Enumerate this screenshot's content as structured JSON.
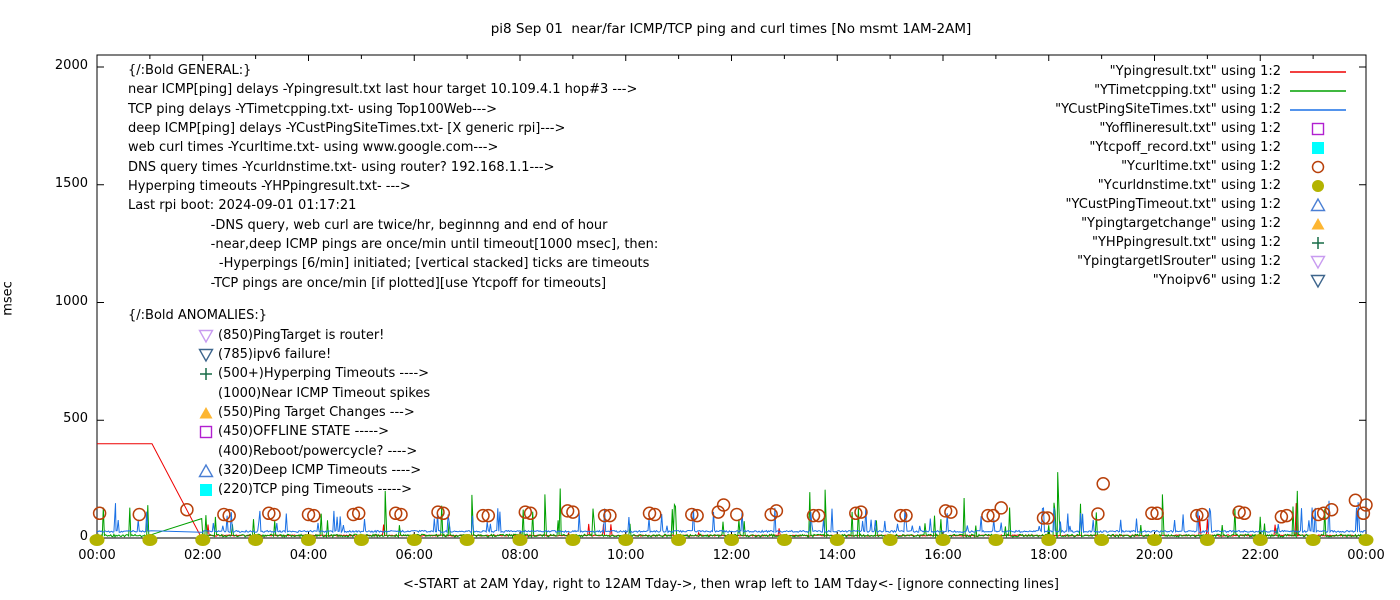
{
  "title": "pi8 Sep 01  near/far ICMP/TCP ping and curl times [No msmt 1AM-2AM]",
  "axes": {
    "ylabel": "msec",
    "y_ticks": [
      0,
      500,
      1000,
      1500,
      2000
    ],
    "x_ticks": [
      {
        "hour": 0,
        "label": "00:00"
      },
      {
        "hour": 2,
        "label": "02:00"
      },
      {
        "hour": 4,
        "label": "04:00"
      },
      {
        "hour": 6,
        "label": "06:00"
      },
      {
        "hour": 8,
        "label": "08:00"
      },
      {
        "hour": 10,
        "label": "10:00"
      },
      {
        "hour": 12,
        "label": "12:00"
      },
      {
        "hour": 14,
        "label": "14:00"
      },
      {
        "hour": 16,
        "label": "16:00"
      },
      {
        "hour": 18,
        "label": "18:00"
      },
      {
        "hour": 20,
        "label": "20:00"
      },
      {
        "hour": 22,
        "label": "22:00"
      },
      {
        "hour": 24,
        "label": "00:00"
      }
    ],
    "x_caption": "<-START at 2AM Yday, right to 12AM Tday->, then wrap left to 1AM Tday<- [ignore connecting lines]"
  },
  "legend": {
    "items": [
      {
        "label": "\"Ypingresult.txt\" using 1:2",
        "marker": "line",
        "color": "#ee0000"
      },
      {
        "label": "\"YTimetcpping.txt\" using 1:2",
        "marker": "line",
        "color": "#00a000"
      },
      {
        "label": "\"YCustPingSiteTimes.txt\" using 1:2",
        "marker": "line",
        "color": "#1b71e5"
      },
      {
        "label": "\"Yofflineresult.txt\" using 1:2",
        "marker": "square-open",
        "color": "#b120d0"
      },
      {
        "label": "\"Ytcpoff_record.txt\" using 1:2",
        "marker": "square-filled",
        "color": "#00ffff"
      },
      {
        "label": "\"Ycurltime.txt\" using 1:2",
        "marker": "circle-open",
        "color": "#b8400a"
      },
      {
        "label": "\"Ycurldnstime.txt\" using 1:2",
        "marker": "circle-filled",
        "color": "#b3b300"
      },
      {
        "label": "\"YCustPingTimeout.txt\" using 1:2",
        "marker": "triangle-up-open",
        "color": "#4a7fd4"
      },
      {
        "label": "\"Ypingtargetchange\" using 1:2",
        "marker": "triangle-up-filled",
        "color": "#fdb632"
      },
      {
        "label": "\"YHPpingresult.txt\" using 1:2",
        "marker": "plus",
        "color": "#176b47"
      },
      {
        "label": "\"YpingtargetISrouter\" using 1:2",
        "marker": "triangle-down-open",
        "color": "#c89bf0"
      },
      {
        "label": "\"Ynoipv6\" using 1:2",
        "marker": "triangle-down-open",
        "color": "#3d658c"
      }
    ]
  },
  "annotations": {
    "general": {
      "heading": "{/:Bold GENERAL:}",
      "lines": [
        "near ICMP[ping] delays -Ypingresult.txt last hour target 10.109.4.1 hop#3 --->",
        "TCP ping delays -YTimetcpping.txt- using Top100Web--->",
        "deep ICMP[ping] delays -YCustPingSiteTimes.txt- [X generic rpi]--->",
        "web curl times -Ycurltime.txt- using www.google.com--->",
        "DNS query times -Ycurldnstime.txt- using router? 192.168.1.1--->",
        "Hyperping timeouts -YHPpingresult.txt- --->",
        "Last rpi boot: 2024-09-01 01:17:21",
        "                    -DNS query, web curl are twice/hr, beginnng and end of hour",
        "                    -near,deep ICMP pings are once/min until timeout[1000 msec], then:",
        "                      -Hyperpings [6/min] initiated; [vertical stacked] ticks are timeouts",
        "                    -TCP pings are once/min [if plotted][use Ytcpoff for timeouts]"
      ]
    },
    "anomalies": {
      "heading": "{/:Bold ANOMALIES:}",
      "items": [
        {
          "marker": "triangle-down-open",
          "color": "#c89bf0",
          "text": "(850)PingTarget is router!"
        },
        {
          "marker": "triangle-down-open",
          "color": "#3d658c",
          "text": "(785)ipv6 failure!"
        },
        {
          "marker": "plus",
          "color": "#176b47",
          "text": "(500+)Hyperping Timeouts ---->"
        },
        {
          "marker": "none",
          "color": "",
          "text": "(1000)Near ICMP Timeout spikes"
        },
        {
          "marker": "triangle-up-filled",
          "color": "#fdb632",
          "text": "(550)Ping Target Changes --->"
        },
        {
          "marker": "square-open",
          "color": "#b120d0",
          "text": "(450)OFFLINE STATE ----->"
        },
        {
          "marker": "none",
          "color": "",
          "text": "(400)Reboot/powercycle? ---->"
        },
        {
          "marker": "triangle-up-open",
          "color": "#4a7fd4",
          "text": "(320)Deep ICMP Timeouts ---->"
        },
        {
          "marker": "square-filled",
          "color": "#00ffff",
          "text": "(220)TCP ping Timeouts ----->"
        }
      ]
    }
  },
  "chart_data": {
    "type": "line",
    "title": "pi8 Sep 01  near/far ICMP/TCP ping and curl times [No msmt 1AM-2AM]",
    "xlabel": "<-START at 2AM Yday, right to 12AM Tday->, then wrap left to 1AM Tday<- [ignore connecting lines]",
    "ylabel": "msec",
    "x_unit": "hours",
    "xlim": [
      0,
      24
    ],
    "ylim": [
      0,
      2050
    ],
    "grid": false,
    "legend_position": "top-right",
    "no_msmt_gap": [
      1.03,
      1.97
    ],
    "seed": 97,
    "series": [
      {
        "name": "Ypingresult.txt",
        "color": "#ee0000",
        "plateau": [
          [
            0,
            400
          ],
          [
            1.04,
            400
          ],
          [
            1.96,
            8
          ]
        ],
        "base": 8,
        "jitter": 5,
        "spike_rate": 0.008,
        "spike_range": [
          20,
          60
        ],
        "big_spikes": [
          [
            9.3,
            60
          ],
          [
            20.85,
            95
          ],
          [
            21.0,
            80
          ],
          [
            22.68,
            148
          ]
        ]
      },
      {
        "name": "YTimetcpping.txt",
        "color": "#00a000",
        "base": 5,
        "jitter": 11,
        "spike_rate": 0.05,
        "spike_range": [
          40,
          150
        ],
        "big_spikes": [
          [
            5.45,
            200
          ],
          [
            7.09,
            183
          ],
          [
            8.47,
            185
          ],
          [
            8.76,
            210
          ],
          [
            13.48,
            195
          ],
          [
            13.77,
            205
          ],
          [
            16.4,
            170
          ],
          [
            18.17,
            280
          ],
          [
            20.15,
            185
          ],
          [
            22.7,
            200
          ]
        ]
      },
      {
        "name": "YCustPingSiteTimes.txt",
        "color": "#1b71e5",
        "base": 24,
        "jitter": 8,
        "spike_rate": 0.07,
        "spike_range": [
          50,
          130
        ],
        "big_spikes": [
          [
            0.35,
            148
          ],
          [
            23.3,
            158
          ],
          [
            23.85,
            152
          ]
        ]
      }
    ],
    "curl_points": {
      "name": "Ycurltime.txt",
      "color": "#b8400a",
      "points": [
        [
          0.05,
          105
        ],
        [
          0.8,
          100
        ],
        [
          1.7,
          120
        ],
        [
          2.4,
          100
        ],
        [
          2.5,
          95
        ],
        [
          3.25,
          105
        ],
        [
          3.35,
          100
        ],
        [
          4.0,
          100
        ],
        [
          4.1,
          95
        ],
        [
          4.85,
          100
        ],
        [
          4.95,
          105
        ],
        [
          5.65,
          105
        ],
        [
          5.75,
          100
        ],
        [
          6.45,
          110
        ],
        [
          6.55,
          105
        ],
        [
          7.3,
          95
        ],
        [
          7.4,
          95
        ],
        [
          8.1,
          110
        ],
        [
          8.2,
          105
        ],
        [
          8.9,
          115
        ],
        [
          9.0,
          110
        ],
        [
          9.6,
          95
        ],
        [
          9.7,
          95
        ],
        [
          10.45,
          105
        ],
        [
          10.55,
          100
        ],
        [
          11.25,
          100
        ],
        [
          11.35,
          95
        ],
        [
          11.75,
          110
        ],
        [
          11.85,
          140
        ],
        [
          12.1,
          100
        ],
        [
          12.75,
          100
        ],
        [
          12.85,
          115
        ],
        [
          13.55,
          95
        ],
        [
          13.65,
          95
        ],
        [
          14.35,
          105
        ],
        [
          14.45,
          110
        ],
        [
          15.2,
          95
        ],
        [
          15.3,
          95
        ],
        [
          16.05,
          115
        ],
        [
          16.15,
          110
        ],
        [
          16.85,
          95
        ],
        [
          16.95,
          95
        ],
        [
          17.1,
          128
        ],
        [
          17.9,
          85
        ],
        [
          17.98,
          85
        ],
        [
          18.93,
          102
        ],
        [
          19.03,
          230
        ],
        [
          19.95,
          105
        ],
        [
          20.05,
          105
        ],
        [
          20.8,
          95
        ],
        [
          20.9,
          100
        ],
        [
          21.6,
          110
        ],
        [
          21.7,
          105
        ],
        [
          22.4,
          90
        ],
        [
          22.5,
          95
        ],
        [
          23.1,
          100
        ],
        [
          23.2,
          105
        ],
        [
          23.35,
          120
        ],
        [
          23.8,
          160
        ],
        [
          23.95,
          105
        ],
        [
          24.0,
          140
        ]
      ]
    },
    "dns_points": {
      "name": "Ycurldnstime.txt",
      "color": "#b3b300",
      "value": 0,
      "hours": [
        0,
        1,
        2,
        3,
        4,
        5,
        6,
        7,
        8,
        9,
        10,
        11,
        12,
        13,
        14,
        15,
        16,
        17,
        18,
        19,
        20,
        21,
        22,
        23,
        24
      ]
    }
  }
}
